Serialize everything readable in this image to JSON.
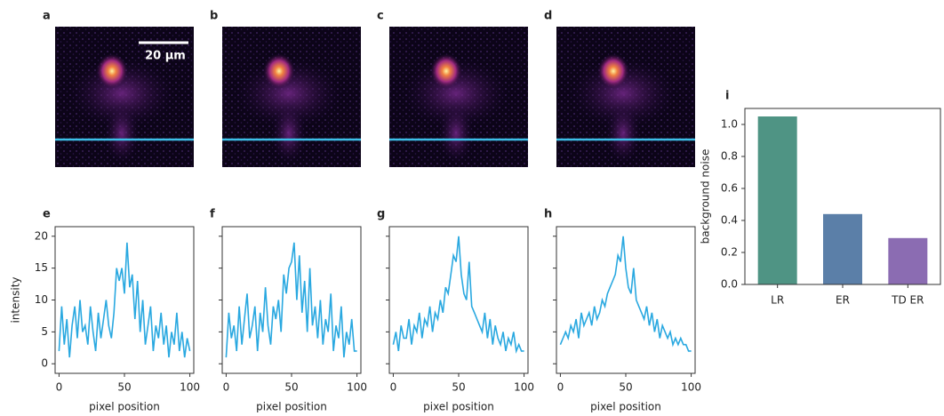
{
  "images": [
    {
      "panel": "a"
    },
    {
      "panel": "b"
    },
    {
      "panel": "c"
    },
    {
      "panel": "d"
    }
  ],
  "scale_bar": "20 µm",
  "chart_data": [
    {
      "type": "line",
      "panel": "e",
      "xlabel": "pixel position",
      "ylabel": "intensity",
      "show_ytick_labels": true,
      "xlim": [
        -3,
        103
      ],
      "ylim": [
        -1.5,
        21.5
      ],
      "xticks": [
        0,
        50,
        100
      ],
      "yticks": [
        0,
        5,
        10,
        15,
        20
      ],
      "x": [
        0,
        2,
        4,
        6,
        8,
        10,
        12,
        14,
        16,
        18,
        20,
        22,
        24,
        26,
        28,
        30,
        32,
        34,
        36,
        38,
        40,
        42,
        44,
        46,
        48,
        50,
        52,
        54,
        56,
        58,
        60,
        62,
        64,
        66,
        68,
        70,
        72,
        74,
        76,
        78,
        80,
        82,
        84,
        86,
        88,
        90,
        92,
        94,
        96,
        98,
        100
      ],
      "series": [
        {
          "color": "#29a8e0",
          "values": [
            2,
            9,
            3,
            7,
            1,
            6,
            9,
            4,
            10,
            5,
            6,
            3,
            9,
            5,
            2,
            8,
            4,
            7,
            10,
            6,
            4,
            8,
            15,
            13,
            15,
            11,
            19,
            12,
            14,
            7,
            13,
            5,
            10,
            3,
            6,
            9,
            2,
            6,
            4,
            8,
            3,
            6,
            1,
            5,
            3,
            8,
            2,
            5,
            1,
            4,
            2
          ]
        }
      ]
    },
    {
      "type": "line",
      "panel": "f",
      "xlabel": "pixel position",
      "show_ytick_labels": false,
      "xlim": [
        -3,
        103
      ],
      "ylim": [
        -1.5,
        21.5
      ],
      "xticks": [
        0,
        50,
        100
      ],
      "yticks": [
        0,
        5,
        10,
        15,
        20
      ],
      "x": [
        0,
        2,
        4,
        6,
        8,
        10,
        12,
        14,
        16,
        18,
        20,
        22,
        24,
        26,
        28,
        30,
        32,
        34,
        36,
        38,
        40,
        42,
        44,
        46,
        48,
        50,
        52,
        54,
        56,
        58,
        60,
        62,
        64,
        66,
        68,
        70,
        72,
        74,
        76,
        78,
        80,
        82,
        84,
        86,
        88,
        90,
        92,
        94,
        96,
        98,
        100
      ],
      "series": [
        {
          "color": "#29a8e0",
          "values": [
            1,
            8,
            4,
            6,
            2,
            9,
            3,
            7,
            11,
            4,
            6,
            9,
            2,
            8,
            5,
            12,
            6,
            3,
            9,
            7,
            10,
            5,
            14,
            11,
            15,
            16,
            19,
            10,
            17,
            8,
            13,
            5,
            15,
            6,
            9,
            4,
            10,
            3,
            7,
            5,
            11,
            2,
            6,
            4,
            9,
            1,
            5,
            3,
            7,
            2,
            2
          ]
        }
      ]
    },
    {
      "type": "line",
      "panel": "g",
      "xlabel": "pixel position",
      "show_ytick_labels": false,
      "xlim": [
        -3,
        103
      ],
      "ylim": [
        -1.5,
        21.5
      ],
      "xticks": [
        0,
        50,
        100
      ],
      "yticks": [
        0,
        5,
        10,
        15,
        20
      ],
      "x": [
        0,
        2,
        4,
        6,
        8,
        10,
        12,
        14,
        16,
        18,
        20,
        22,
        24,
        26,
        28,
        30,
        32,
        34,
        36,
        38,
        40,
        42,
        44,
        46,
        48,
        50,
        52,
        54,
        56,
        58,
        60,
        62,
        64,
        66,
        68,
        70,
        72,
        74,
        76,
        78,
        80,
        82,
        84,
        86,
        88,
        90,
        92,
        94,
        96,
        98,
        100
      ],
      "series": [
        {
          "color": "#29a8e0",
          "values": [
            3,
            5,
            2,
            6,
            4,
            4,
            7,
            3,
            6,
            5,
            8,
            4,
            7,
            6,
            9,
            5,
            8,
            7,
            10,
            8,
            12,
            11,
            14,
            17,
            16,
            20,
            14,
            11,
            10,
            16,
            9,
            8,
            7,
            6,
            5,
            8,
            4,
            7,
            3,
            6,
            4,
            3,
            5,
            2,
            4,
            3,
            5,
            2,
            3,
            2,
            2
          ]
        }
      ]
    },
    {
      "type": "line",
      "panel": "h",
      "xlabel": "pixel position",
      "show_ytick_labels": false,
      "xlim": [
        -3,
        103
      ],
      "ylim": [
        -1.5,
        21.5
      ],
      "xticks": [
        0,
        50,
        100
      ],
      "yticks": [
        0,
        5,
        10,
        15,
        20
      ],
      "x": [
        0,
        2,
        4,
        6,
        8,
        10,
        12,
        14,
        16,
        18,
        20,
        22,
        24,
        26,
        28,
        30,
        32,
        34,
        36,
        38,
        40,
        42,
        44,
        46,
        48,
        50,
        52,
        54,
        56,
        58,
        60,
        62,
        64,
        66,
        68,
        70,
        72,
        74,
        76,
        78,
        80,
        82,
        84,
        86,
        88,
        90,
        92,
        94,
        96,
        98,
        100
      ],
      "series": [
        {
          "color": "#29a8e0",
          "values": [
            3,
            4,
            5,
            4,
            6,
            5,
            7,
            4,
            8,
            6,
            7,
            8,
            6,
            9,
            7,
            8,
            10,
            9,
            11,
            12,
            13,
            14,
            17,
            16,
            20,
            15,
            12,
            11,
            15,
            10,
            9,
            8,
            7,
            9,
            6,
            8,
            5,
            7,
            4,
            6,
            5,
            4,
            5,
            3,
            4,
            3,
            4,
            3,
            3,
            2,
            2
          ]
        }
      ]
    },
    {
      "type": "bar",
      "panel": "i",
      "ylabel": "background noise",
      "categories": [
        "LR",
        "ER",
        "TD ER"
      ],
      "values": [
        1.05,
        0.44,
        0.29
      ],
      "colors": [
        "#4f9484",
        "#5b7fa8",
        "#8b6cb2"
      ],
      "ylim": [
        0,
        1.1
      ],
      "yticks": [
        {
          "value": 0,
          "label": "0.0"
        },
        0.2,
        0.4,
        0.6,
        0.8,
        {
          "value": 1,
          "label": "1.0"
        }
      ]
    }
  ]
}
